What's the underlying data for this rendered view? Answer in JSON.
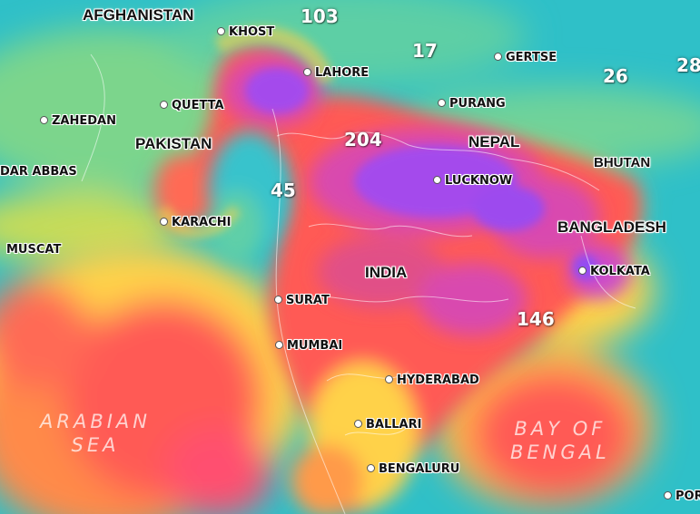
{
  "map": {
    "colors": {
      "good": "#2fc0c8",
      "moderate": "#78d48a",
      "fair": "#c9df55",
      "sensitive": "#ffd24a",
      "unhealthy": "#ff5a55",
      "very_unhealthy": "#d74ab4",
      "hazardous": "#a24cf0"
    },
    "countries": {
      "afghanistan": "AFGHANISTAN",
      "pakistan": "PAKISTAN",
      "nepal": "NEPAL",
      "bhutan": "BHUTAN",
      "bangladesh": "BANGLADESH",
      "india": "INDIA"
    },
    "cities": {
      "khost": "KHOST",
      "lahore": "LAHORE",
      "gertse": "GERTSE",
      "purang": "PURANG",
      "quetta": "QUETTA",
      "zahedan": "ZAHEDAN",
      "bandar_abbas": "DAR ABBAS",
      "lucknow": "LUCKNOW",
      "karachi": "KARACHI",
      "muscat": "MUSCAT",
      "kolkata": "KOLKATA",
      "surat": "SURAT",
      "mumbai": "MUMBAI",
      "hyderabad": "HYDERABAD",
      "ballari": "BALLARI",
      "bengaluru": "BENGALURU",
      "port": "POR"
    },
    "readings": {
      "r103": "103",
      "r17": "17",
      "r26": "26",
      "r28": "28",
      "r204": "204",
      "r45": "45",
      "r146": "146"
    },
    "water": {
      "arabian_1": "ARABIAN",
      "arabian_2": "SEA",
      "bengal_1": "BAY OF",
      "bengal_2": "BENGAL"
    }
  }
}
